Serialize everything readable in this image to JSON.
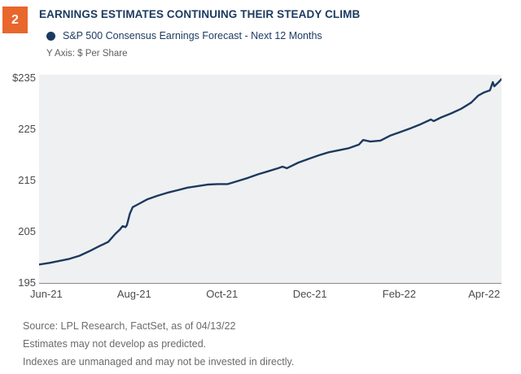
{
  "figure_number": "2",
  "title": "EARNINGS ESTIMATES CONTINUING THEIR STEADY CLIMB",
  "legend": {
    "series_label": "S&P 500 Consensus Earnings Forecast - Next 12 Months"
  },
  "y_axis_caption": "Y Axis: $ Per Share",
  "footnotes": [
    "Source: LPL Research, FactSet, as of 04/13/22",
    "Estimates may not develop as predicted.",
    "Indexes are unmanaged and may not be invested in directly."
  ],
  "colors": {
    "accent_orange": "#E9662C",
    "navy": "#1B3A5F",
    "line": "#1B3A5F",
    "plot_bg": "#EFF0F2",
    "axis_line": "#8C8C8C",
    "tick_text": "#4B4B4B",
    "footnote_text": "#6B6B6B"
  },
  "chart_data": {
    "type": "line",
    "title": "S&P 500 Consensus Earnings Forecast - Next 12 Months",
    "xlabel": "",
    "ylabel": "$ Per Share",
    "ylim": [
      195,
      235
    ],
    "x_range": [
      "2021-05-27",
      "2022-04-13"
    ],
    "grid": false,
    "legend_position": "top-left",
    "y_ticks": [
      {
        "label": "$235",
        "value": 235
      },
      {
        "label": "225",
        "value": 225
      },
      {
        "label": "215",
        "value": 215
      },
      {
        "label": "205",
        "value": 205
      },
      {
        "label": "195",
        "value": 195
      }
    ],
    "x_ticks": [
      {
        "label": "Jun-21",
        "date": "2021-06-01"
      },
      {
        "label": "Aug-21",
        "date": "2021-08-01"
      },
      {
        "label": "Oct-21",
        "date": "2021-10-01"
      },
      {
        "label": "Dec-21",
        "date": "2021-12-01"
      },
      {
        "label": "Feb-22",
        "date": "2022-02-01"
      },
      {
        "label": "Apr-22",
        "date": "2022-04-01"
      }
    ],
    "series": [
      {
        "name": "S&P 500 Consensus Earnings Forecast - Next 12 Months",
        "color": "#1B3A5F",
        "points": [
          [
            "2021-05-27",
            198.6
          ],
          [
            "2021-06-03",
            198.9
          ],
          [
            "2021-06-10",
            199.3
          ],
          [
            "2021-06-17",
            199.7
          ],
          [
            "2021-06-24",
            200.3
          ],
          [
            "2021-07-01",
            201.2
          ],
          [
            "2021-07-08",
            202.2
          ],
          [
            "2021-07-14",
            203.0
          ],
          [
            "2021-07-19",
            204.6
          ],
          [
            "2021-07-22",
            205.4
          ],
          [
            "2021-07-24",
            206.1
          ],
          [
            "2021-07-26",
            205.9
          ],
          [
            "2021-07-27",
            206.3
          ],
          [
            "2021-07-29",
            208.5
          ],
          [
            "2021-07-31",
            209.8
          ],
          [
            "2021-08-04",
            210.4
          ],
          [
            "2021-08-10",
            211.3
          ],
          [
            "2021-08-17",
            212.0
          ],
          [
            "2021-08-24",
            212.6
          ],
          [
            "2021-08-31",
            213.1
          ],
          [
            "2021-09-07",
            213.6
          ],
          [
            "2021-09-14",
            213.9
          ],
          [
            "2021-09-21",
            214.2
          ],
          [
            "2021-09-28",
            214.3
          ],
          [
            "2021-10-05",
            214.3
          ],
          [
            "2021-10-12",
            214.9
          ],
          [
            "2021-10-19",
            215.5
          ],
          [
            "2021-10-26",
            216.2
          ],
          [
            "2021-11-02",
            216.8
          ],
          [
            "2021-11-09",
            217.4
          ],
          [
            "2021-11-12",
            217.7
          ],
          [
            "2021-11-15",
            217.4
          ],
          [
            "2021-11-23",
            218.5
          ],
          [
            "2021-11-30",
            219.2
          ],
          [
            "2021-12-07",
            219.9
          ],
          [
            "2021-12-14",
            220.5
          ],
          [
            "2021-12-21",
            220.9
          ],
          [
            "2021-12-28",
            221.3
          ],
          [
            "2022-01-04",
            222.0
          ],
          [
            "2022-01-07",
            222.9
          ],
          [
            "2022-01-12",
            222.6
          ],
          [
            "2022-01-19",
            222.8
          ],
          [
            "2022-01-26",
            223.8
          ],
          [
            "2022-02-02",
            224.5
          ],
          [
            "2022-02-09",
            225.2
          ],
          [
            "2022-02-16",
            226.0
          ],
          [
            "2022-02-23",
            226.9
          ],
          [
            "2022-02-25",
            226.6
          ],
          [
            "2022-03-02",
            227.3
          ],
          [
            "2022-03-09",
            228.1
          ],
          [
            "2022-03-16",
            229.0
          ],
          [
            "2022-03-23",
            230.2
          ],
          [
            "2022-03-28",
            231.6
          ],
          [
            "2022-04-01",
            232.2
          ],
          [
            "2022-04-05",
            232.6
          ],
          [
            "2022-04-07",
            234.2
          ],
          [
            "2022-04-08",
            233.4
          ],
          [
            "2022-04-11",
            234.2
          ],
          [
            "2022-04-13",
            234.8
          ]
        ]
      }
    ]
  }
}
